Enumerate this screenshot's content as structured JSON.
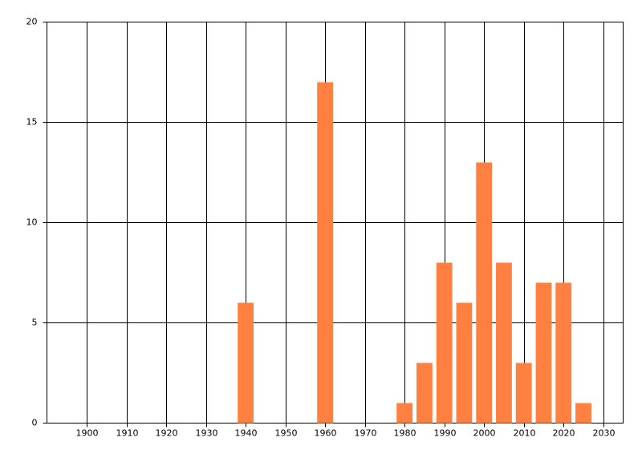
{
  "chart_data": {
    "type": "bar",
    "x": [
      1940,
      1960,
      1980,
      1985,
      1990,
      1995,
      2000,
      2005,
      2010,
      2015,
      2020,
      2025
    ],
    "values": [
      6,
      17,
      1,
      3,
      8,
      6,
      13,
      8,
      3,
      7,
      7,
      1
    ],
    "color": "#ff8040",
    "xlim": [
      1890,
      2035
    ],
    "xticks": [
      1900,
      1910,
      1920,
      1930,
      1940,
      1950,
      1960,
      1970,
      1980,
      1990,
      2000,
      2010,
      2020,
      2030
    ],
    "ylim": [
      0,
      20
    ],
    "yticks": [
      0,
      5,
      10,
      15,
      20
    ],
    "grid": true
  }
}
